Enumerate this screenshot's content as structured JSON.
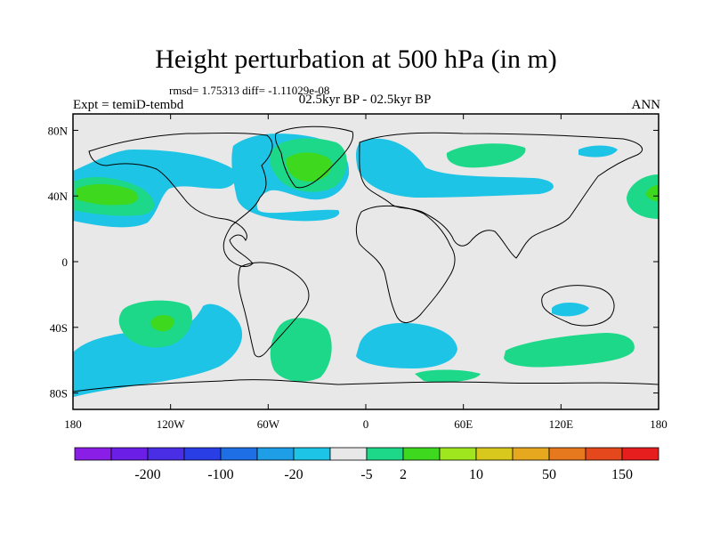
{
  "title": "Height perturbation at 500 hPa (in m)",
  "stats": "rmsd= 1.75313 diff= -1.11029e-08",
  "left_label": "Expt = temiD-tembd",
  "center_label": "02.5kyr BP - 02.5kyr BP",
  "right_label": "ANN",
  "x_ticks": [
    {
      "lon": -180,
      "label": "180"
    },
    {
      "lon": -120,
      "label": "120W"
    },
    {
      "lon": -60,
      "label": "60W"
    },
    {
      "lon": 0,
      "label": "0"
    },
    {
      "lon": 60,
      "label": "60E"
    },
    {
      "lon": 120,
      "label": "120E"
    },
    {
      "lon": 180,
      "label": "180"
    }
  ],
  "y_ticks": [
    {
      "lat": 80,
      "label": "80N"
    },
    {
      "lat": 40,
      "label": "40N"
    },
    {
      "lat": 0,
      "label": "0"
    },
    {
      "lat": -40,
      "label": "40S"
    },
    {
      "lat": -80,
      "label": "80S"
    }
  ],
  "colorbar": {
    "colors": [
      "#8a1ee6",
      "#6a1ee6",
      "#4a2ee6",
      "#2a3ee6",
      "#1e6ee6",
      "#1e9ee6",
      "#1ec4e6",
      "#e8e8e8",
      "#1ed88a",
      "#3ed81e",
      "#a0e61e",
      "#d8c81e",
      "#e6a81e",
      "#e6781e",
      "#e6481e",
      "#e61e1e"
    ],
    "labels": [
      {
        "after_index": 1,
        "text": "-200"
      },
      {
        "after_index": 3,
        "text": "-100"
      },
      {
        "after_index": 5,
        "text": "-20"
      },
      {
        "after_index": 7,
        "text": "-5"
      },
      {
        "after_index": 8,
        "text": "2"
      },
      {
        "after_index": 10,
        "text": "10"
      },
      {
        "after_index": 12,
        "text": "50"
      },
      {
        "after_index": 14,
        "text": "150"
      }
    ]
  },
  "colors": {
    "background": "#e8e8e8",
    "negative": "#1ec4e6",
    "positive": "#1ed88a",
    "strong_positive": "#3ed81e"
  }
}
